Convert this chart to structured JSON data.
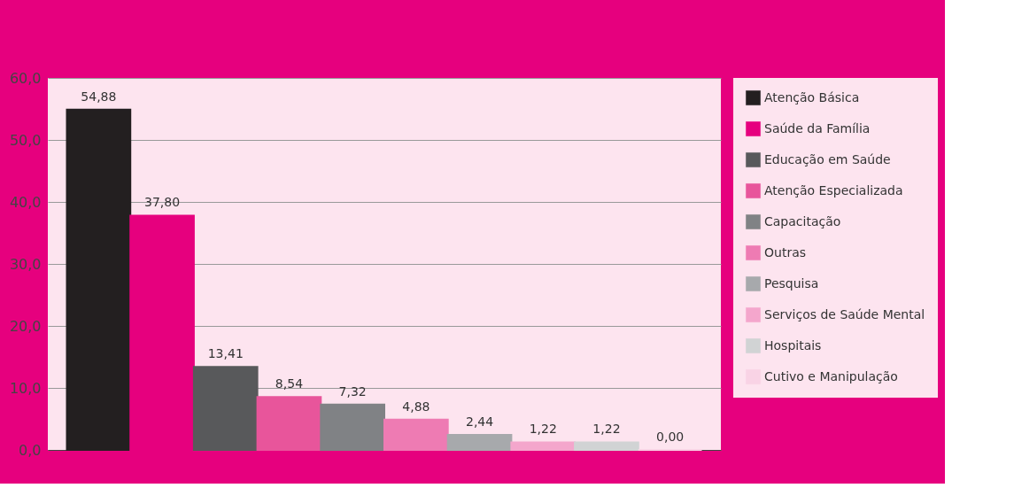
{
  "chart_data": {
    "type": "bar",
    "categories": [
      null,
      null,
      null,
      null,
      null,
      null,
      null,
      null,
      null,
      null
    ],
    "series": [
      {
        "name": "Atenção Básica",
        "color": "#231f20",
        "values": [
          54.88,
          null,
          null,
          null,
          null,
          null,
          null,
          null,
          null,
          null
        ],
        "value_labels": [
          "54,88",
          null,
          null,
          null,
          null,
          null,
          null,
          null,
          null,
          null
        ]
      },
      {
        "name": "Saúde da Família",
        "color": "#e6007e",
        "values": [
          null,
          37.8,
          null,
          null,
          null,
          null,
          null,
          null,
          null,
          null
        ],
        "value_labels": [
          null,
          "37,80",
          null,
          null,
          null,
          null,
          null,
          null,
          null,
          null
        ]
      },
      {
        "name": "Educação em Saúde",
        "color": "#58595b",
        "values": [
          null,
          null,
          13.41,
          null,
          null,
          null,
          null,
          null,
          null,
          null
        ],
        "value_labels": [
          null,
          null,
          "13,41",
          null,
          null,
          null,
          null,
          null,
          null,
          null
        ]
      },
      {
        "name": "Atenção Especializada",
        "color": "#e8559b",
        "values": [
          null,
          null,
          null,
          8.54,
          null,
          null,
          null,
          null,
          null,
          null
        ],
        "value_labels": [
          null,
          null,
          null,
          "8,54",
          null,
          null,
          null,
          null,
          null,
          null
        ]
      },
      {
        "name": "Capacitação",
        "color": "#808285",
        "values": [
          null,
          null,
          null,
          null,
          7.32,
          null,
          null,
          null,
          null,
          null
        ],
        "value_labels": [
          null,
          null,
          null,
          null,
          "7,32",
          null,
          null,
          null,
          null,
          null
        ]
      },
      {
        "name": "Outras",
        "color": "#ee7bb3",
        "values": [
          null,
          null,
          null,
          null,
          null,
          4.88,
          null,
          null,
          null,
          null
        ],
        "value_labels": [
          null,
          null,
          null,
          null,
          null,
          "4,88",
          null,
          null,
          null,
          null
        ]
      },
      {
        "name": "Pesquisa",
        "color": "#a7a9ac",
        "values": [
          null,
          null,
          null,
          null,
          null,
          null,
          2.44,
          null,
          null,
          null
        ],
        "value_labels": [
          null,
          null,
          null,
          null,
          null,
          null,
          "2,44",
          null,
          null,
          null
        ]
      },
      {
        "name": "Serviços de Saúde Mental",
        "color": "#f4a6cc",
        "values": [
          null,
          null,
          null,
          null,
          null,
          null,
          null,
          1.22,
          null,
          null
        ],
        "value_labels": [
          null,
          null,
          null,
          null,
          null,
          null,
          null,
          "1,22",
          null,
          null
        ]
      },
      {
        "name": "Hospitais",
        "color": "#d1d3d4",
        "values": [
          null,
          null,
          null,
          null,
          null,
          null,
          null,
          null,
          1.22,
          null
        ],
        "value_labels": [
          null,
          null,
          null,
          null,
          null,
          null,
          null,
          null,
          "1,22",
          null
        ]
      },
      {
        "name": "Cutivo e Manipulação",
        "color": "#f9d3e5",
        "values": [
          null,
          null,
          null,
          null,
          null,
          null,
          null,
          null,
          null,
          0.0
        ],
        "value_labels": [
          null,
          null,
          null,
          null,
          null,
          null,
          null,
          null,
          null,
          "0,00"
        ]
      }
    ],
    "ylim": [
      0,
      60
    ],
    "yticks": [
      {
        "value": 0,
        "label": "0,0"
      },
      {
        "value": 10,
        "label": "10,0"
      },
      {
        "value": 20,
        "label": "20,0"
      },
      {
        "value": 30,
        "label": "30,0"
      },
      {
        "value": 40,
        "label": "40,0"
      },
      {
        "value": 50,
        "label": "50,0"
      },
      {
        "value": 60,
        "label": "60,0"
      }
    ],
    "grid": "y",
    "legend": "right",
    "tick_labels": "y"
  }
}
